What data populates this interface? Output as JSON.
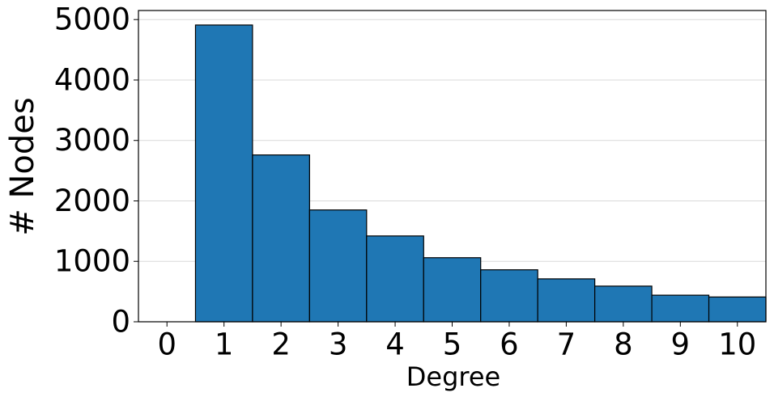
{
  "chart_data": {
    "type": "histogram",
    "x_label": "Degree",
    "y_label": "# Nodes",
    "bins": [
      -0.5,
      0.5,
      1.5,
      2.5,
      3.5,
      4.5,
      5.5,
      6.5,
      7.5,
      8.5,
      9.5,
      10.5
    ],
    "values": [
      0,
      4910,
      2760,
      1850,
      1420,
      1060,
      860,
      710,
      590,
      440,
      410
    ],
    "color": "#1f77b4",
    "edge_color": "#000000",
    "xlim": [
      -0.5,
      10.5
    ],
    "xticks": [
      0,
      1,
      2,
      3,
      4,
      5,
      6,
      7,
      8,
      9,
      10
    ],
    "ylim": [
      0,
      5150
    ],
    "yticks": [
      0,
      1000,
      2000,
      3000,
      4000,
      5000
    ],
    "grid": true
  }
}
